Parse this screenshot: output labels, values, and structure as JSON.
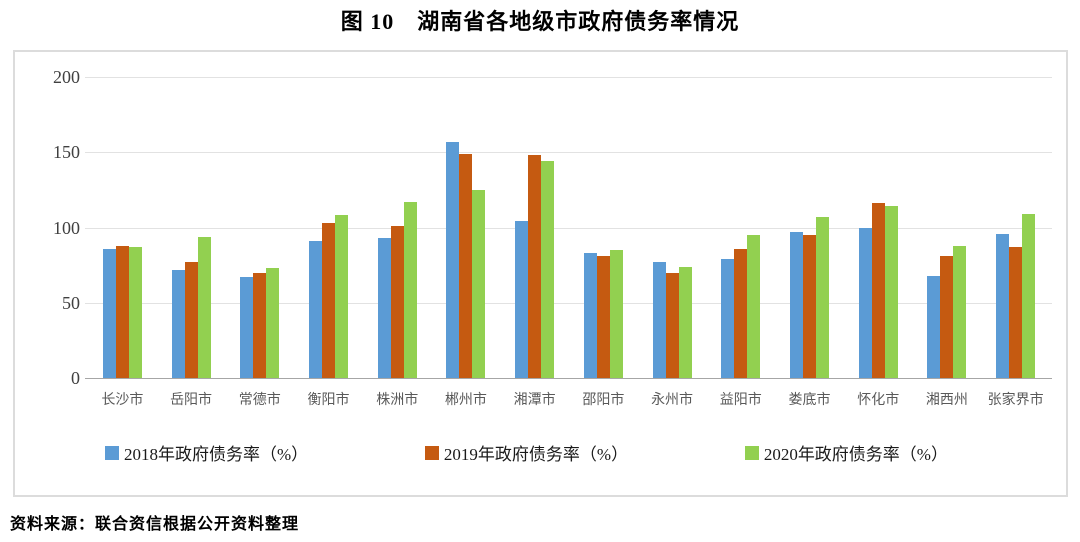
{
  "title": "图 10　湖南省各地级市政府债务率情况",
  "source_note": "资料来源：联合资信根据公开资料整理",
  "colors": {
    "series_2018": "#5B9BD5",
    "series_2019": "#C55A11",
    "series_2020": "#92D050",
    "gridline": "#E2E2E2",
    "axis_line": "#A6A6A6",
    "tick_label": "#595959"
  },
  "chart_data": {
    "type": "bar",
    "title": "图 10　湖南省各地级市政府债务率情况",
    "xlabel": "",
    "ylabel": "",
    "ylim": [
      0,
      200
    ],
    "yticks": [
      0,
      50,
      100,
      150,
      200
    ],
    "grid": true,
    "legend_position": "bottom",
    "categories": [
      "长沙市",
      "岳阳市",
      "常德市",
      "衡阳市",
      "株洲市",
      "郴州市",
      "湘潭市",
      "邵阳市",
      "永州市",
      "益阳市",
      "娄底市",
      "怀化市",
      "湘西州",
      "张家界市"
    ],
    "series": [
      {
        "name": "2018年政府债务率（%）",
        "color": "#5B9BD5",
        "values": [
          86,
          72,
          67,
          91,
          93,
          157,
          104,
          83,
          77,
          79,
          97,
          100,
          68,
          96
        ]
      },
      {
        "name": "2019年政府债务率（%）",
        "color": "#C55A11",
        "values": [
          88,
          77,
          70,
          103,
          101,
          149,
          148,
          81,
          70,
          86,
          95,
          116,
          81,
          87
        ]
      },
      {
        "name": "2020年政府债务率（%）",
        "color": "#92D050",
        "values": [
          87,
          94,
          73,
          108,
          117,
          125,
          144,
          85,
          74,
          95,
          107,
          114,
          88,
          109
        ]
      }
    ]
  }
}
